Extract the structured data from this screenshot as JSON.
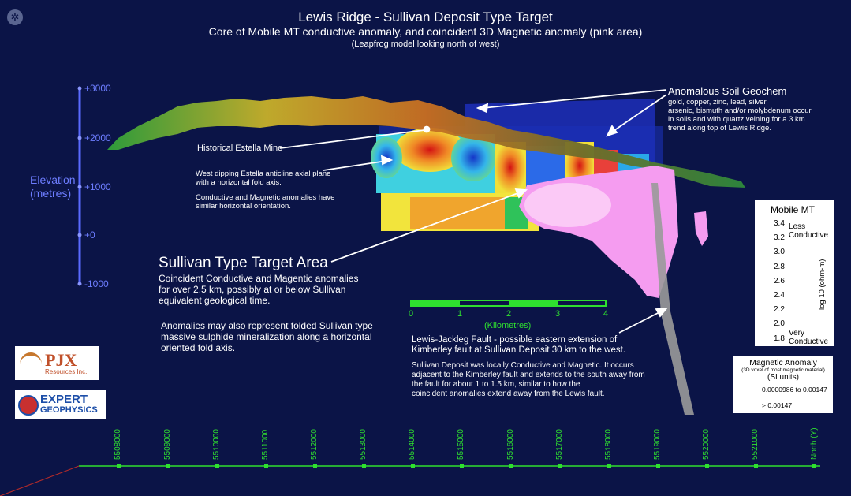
{
  "header": {
    "title": "Lewis Ridge - Sullivan Deposit Type Target",
    "subtitle": "Core of Mobile MT conductive anomaly, and coincident 3D Magnetic anomaly (pink area)",
    "note": "(Leapfrog model looking north of west)"
  },
  "elevation": {
    "label_line1": "Elevation",
    "label_line2": "(metres)",
    "ticks": [
      "+3000",
      "+2000",
      "+1000",
      "+0",
      "-1000"
    ]
  },
  "annotations": {
    "soil_title": "Anomalous Soil Geochem",
    "soil_text": [
      "gold, copper, zinc, lead, silver,",
      "arsenic, bismuth and/or molybdenum occur",
      "in soils and with quartz veining for a 3 km",
      "trend along top of Lewis Ridge."
    ],
    "mine": "Historical Estella Mine",
    "anticline": [
      "West dipping Estella anticline axial plane",
      "with a horizontal fold axis."
    ],
    "similar": [
      "Conductive and Magnetic anomalies have",
      "similar horizontal orientation."
    ],
    "target_title": "Sullivan Type Target Area",
    "target_text": [
      "Coincident Conductive and Magentic anomalies",
      "for over 2.5 km, possibly at or below Sullivan",
      "equivalent geological time."
    ],
    "folded": [
      "Anomalies may also represent folded Sullivan type",
      "massive sulphide mineralization along a horizontal",
      "oriented fold axis."
    ],
    "fault": [
      "Lewis-Jackleg Fault - possible eastern extension of",
      "Kimberley fault at Sullivan Deposit 30 km to the west."
    ],
    "sullivan_deposit": [
      "Sullivan Deposit was locally Conductive and Magnetic. It occurs",
      "adjacent to the Kimberley fault and extends to the south away from",
      "the fault for about 1 to 1.5 km, similar to how the",
      "coincident anomalies extend away from the Lewis fault."
    ]
  },
  "scale": {
    "ticks": [
      "0",
      "1",
      "2",
      "3",
      "4"
    ],
    "unit": "(Kilometres)"
  },
  "colorbar": {
    "title": "Mobile MT",
    "ticks": [
      "3.4",
      "3.2",
      "3.0",
      "2.8",
      "2.6",
      "2.4",
      "2.2",
      "2.0",
      "1.8"
    ],
    "less": "Less",
    "conductive_top": "Conductive",
    "very": "Very",
    "conductive_bottom": "Conductive",
    "axis_label": "log 10 (ohm-m)"
  },
  "magnetic_legend": {
    "title": "Magnetic Anomaly",
    "subtitle": "(3D voxel of most magnetic material)",
    "units": "(SI units)",
    "items": [
      {
        "label": "0.0000986 to 0.00147",
        "color": "#f59cf0"
      },
      {
        "label": "> 0.00147",
        "color": "#fbc9f6"
      }
    ]
  },
  "northing": {
    "labels": [
      "5508000",
      "5509000",
      "5510000",
      "5511000",
      "5512000",
      "5513000",
      "5514000",
      "5515000",
      "5516000",
      "5517000",
      "5518000",
      "5519000",
      "5520000",
      "5521000"
    ],
    "axis": "North (Y)"
  },
  "logos": {
    "pjx": "PJX",
    "pjx_sub": "Resources Inc.",
    "expert_line1": "EXPERT",
    "expert_line2": "GEOPHYSICS"
  },
  "colors": {
    "background": "#0b1447",
    "elevation": "#6d7dff",
    "grid": "#2fe02f",
    "pink": "#f59cf0"
  }
}
